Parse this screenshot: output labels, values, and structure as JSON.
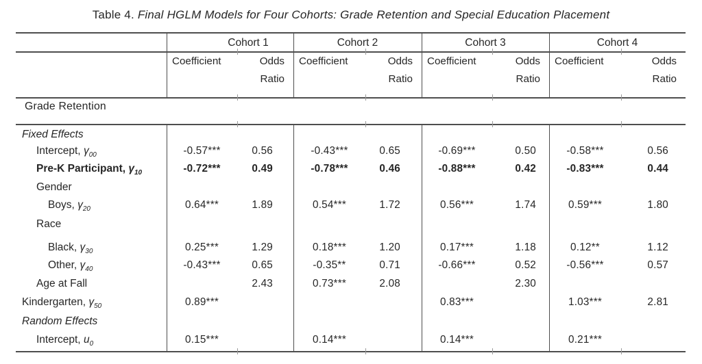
{
  "title": {
    "prefix": "Table 4.",
    "rest": " Final HGLM Models for Four Cohorts: Grade Retention and Special Education Placement"
  },
  "table": {
    "cohorts": [
      "Cohort 1",
      "Cohort 2",
      "Cohort 3",
      "Cohort 4"
    ],
    "subheaders": {
      "coefficient": "Coefficient",
      "odds": "Odds",
      "ratio": "Ratio"
    },
    "section_label": "Grade Retention",
    "rows": [
      {
        "kind": "group",
        "italic": true,
        "indent": 0,
        "label": "Fixed Effects",
        "values": [
          "",
          "",
          "",
          "",
          "",
          "",
          "",
          ""
        ]
      },
      {
        "indent": 1,
        "label": "Intercept, ",
        "sym": "γ",
        "sub": "00",
        "values": [
          "-0.57***",
          "0.56",
          "-0.43***",
          "0.65",
          "-0.69***",
          "0.50",
          "-0.58***",
          "0.56"
        ]
      },
      {
        "indent": 1,
        "bold": true,
        "label": "Pre-K Participant, ",
        "sym": "γ",
        "sub": "10",
        "values": [
          "-0.72***",
          "0.49",
          "-0.78***",
          "0.46",
          "-0.88***",
          "0.42",
          "-0.83***",
          "0.44"
        ]
      },
      {
        "indent": 1,
        "label": "Gender",
        "values": [
          "",
          "",
          "",
          "",
          "",
          "",
          "",
          ""
        ]
      },
      {
        "indent": 2,
        "label": "Boys, ",
        "sym": "γ",
        "sub": "20",
        "values": [
          "0.64***",
          "1.89",
          "0.54***",
          "1.72",
          "0.56***",
          "1.74",
          "0.59***",
          "1.80"
        ]
      },
      {
        "indent": 1,
        "label": "Race",
        "values": [
          "",
          "",
          "",
          "",
          "",
          "",
          "",
          ""
        ]
      },
      {
        "indent": 2,
        "label": "Black, ",
        "sym": "γ",
        "sub": "30",
        "values": [
          "0.25***",
          "1.29",
          "0.18***",
          "1.20",
          "0.17***",
          "1.18",
          "0.12**",
          "1.12"
        ]
      },
      {
        "indent": 2,
        "label": "Other, ",
        "sym": "γ",
        "sub": "40",
        "values": [
          "-0.43***",
          "0.65",
          "-0.35**",
          "0.71",
          "-0.66***",
          "0.52",
          "-0.56***",
          "0.57"
        ]
      },
      {
        "indent": 1,
        "label": "Age at Fall",
        "values": [
          "",
          "2.43",
          "0.73***",
          "2.08",
          "",
          "2.30",
          "",
          ""
        ]
      },
      {
        "indent": 0,
        "label": "Kindergarten, ",
        "sym": "γ",
        "sub": "50",
        "values": [
          "0.89***",
          "",
          "",
          "",
          "0.83***",
          "",
          "1.03***",
          "2.81"
        ]
      },
      {
        "kind": "group",
        "italic": true,
        "indent": 0,
        "label": "Random Effects",
        "values": [
          "",
          "",
          "",
          "",
          "",
          "",
          "",
          ""
        ]
      },
      {
        "indent": 1,
        "label": "Intercept, ",
        "sym": "u",
        "sub": "0",
        "values": [
          "0.15***",
          "",
          "0.14***",
          "",
          "0.14***",
          "",
          "0.21***",
          ""
        ]
      }
    ]
  },
  "colors": {
    "text": "#262626",
    "rule": "#4d4d4d",
    "tick": "#9a9a9a"
  }
}
